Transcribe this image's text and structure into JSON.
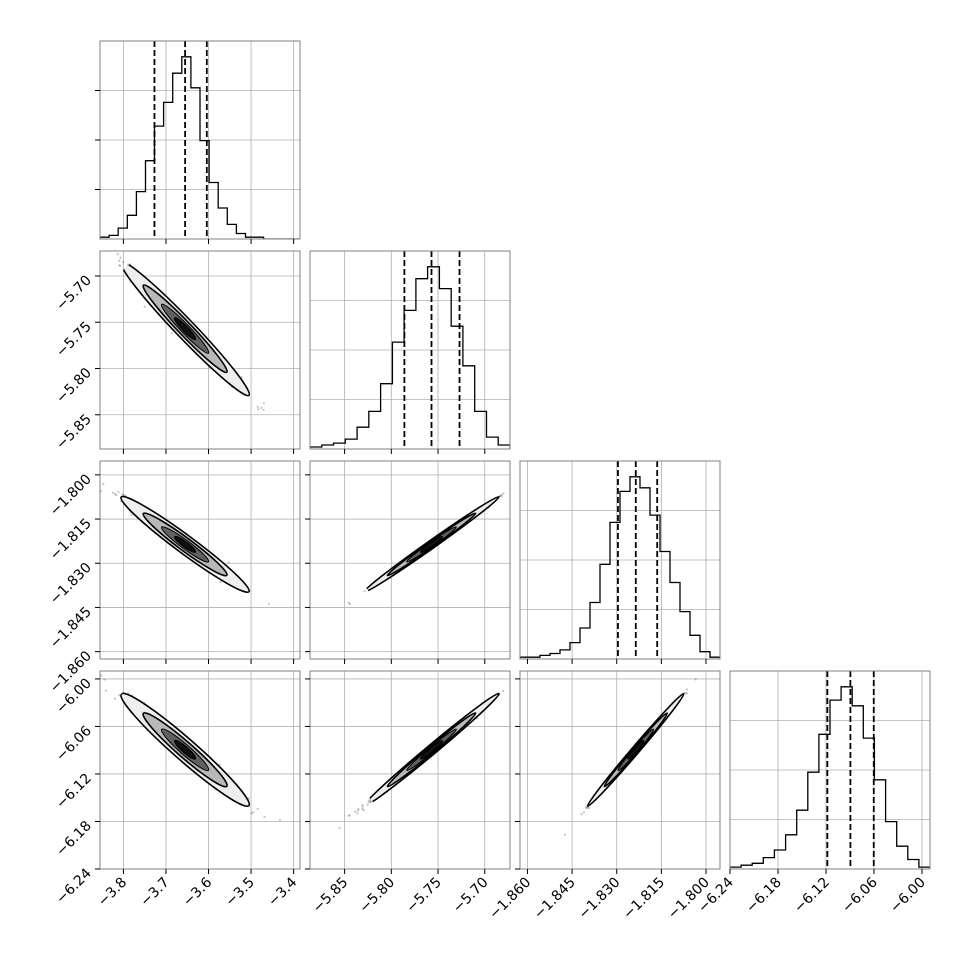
{
  "chart_data": {
    "type": "corner",
    "title": "",
    "grid": true,
    "parameters": [
      {
        "ticks": [
          -3.8,
          -3.7,
          -3.6,
          -3.5,
          -3.4
        ],
        "tick_labels": [
          "−3.8",
          "−3.7",
          "−3.6",
          "−3.5",
          "−3.4"
        ],
        "range": [
          -3.855,
          -3.385
        ]
      },
      {
        "ticks": [
          -5.85,
          -5.8,
          -5.75,
          -5.7
        ],
        "tick_labels": [
          "−5.85",
          "−5.80",
          "−5.75",
          "−5.70"
        ],
        "range": [
          -5.887,
          -5.673
        ]
      },
      {
        "ticks": [
          -1.86,
          -1.845,
          -1.83,
          -1.815,
          -1.8
        ],
        "tick_labels": [
          "−1.860",
          "−1.845",
          "−1.830",
          "−1.815",
          "−1.800"
        ],
        "range": [
          -1.8625,
          -1.7953
        ]
      },
      {
        "ticks": [
          -6.24,
          -6.18,
          -6.12,
          -6.06,
          -6.0
        ],
        "tick_labels": [
          "−6.24",
          "−6.18",
          "−6.12",
          "−6.06",
          "−6.00"
        ],
        "range": [
          -6.24,
          -5.99
        ]
      }
    ],
    "quantiles": [
      [
        -3.727,
        -3.655,
        -3.604
      ],
      [
        -5.786,
        -5.757,
        -5.727
      ],
      [
        -1.8296,
        -1.8236,
        -1.8164
      ],
      [
        -6.1183,
        -6.0895,
        -6.0603
      ]
    ],
    "histograms": [
      [
        1,
        2,
        6,
        13,
        26,
        43,
        62,
        75,
        91,
        100,
        83,
        54,
        31,
        17,
        8,
        3,
        1,
        1,
        0,
        0,
        0,
        0
      ],
      [
        1,
        2,
        3,
        5,
        11,
        19,
        33,
        54,
        70,
        86,
        92,
        81,
        62,
        42,
        19,
        6,
        2
      ],
      [
        1,
        1,
        2,
        3,
        5,
        9,
        17,
        31,
        52,
        75,
        92,
        100,
        94,
        79,
        59,
        42,
        26,
        13,
        4,
        1
      ],
      [
        1,
        2,
        3,
        6,
        10,
        18,
        31,
        51,
        71,
        89,
        96,
        86,
        69,
        47,
        25,
        12,
        5,
        1
      ]
    ],
    "correlations": {
      "1-0": -0.985,
      "2-0": -0.98,
      "3-0": -0.975,
      "2-1": 0.998,
      "3-1": 0.997,
      "3-2": 0.998
    }
  }
}
